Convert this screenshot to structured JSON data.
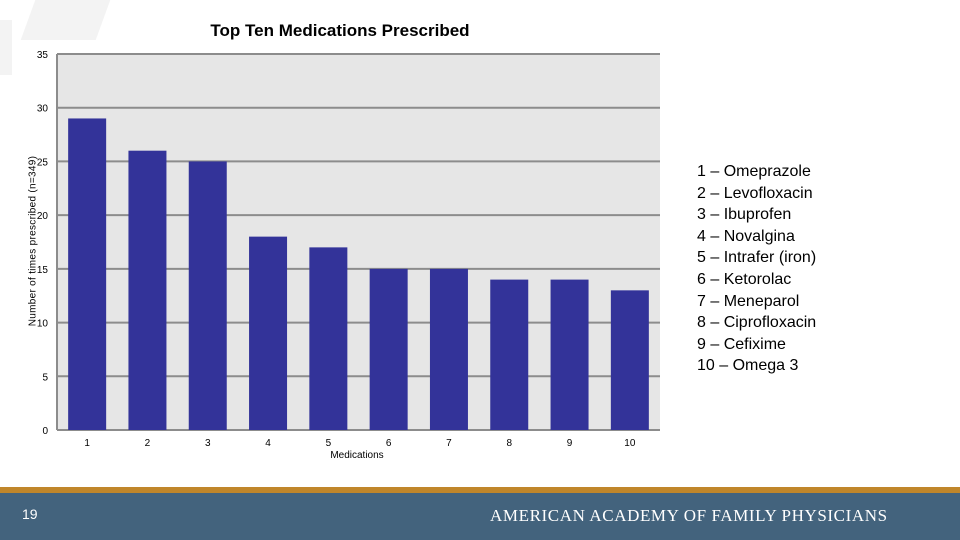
{
  "chart_data": {
    "type": "bar",
    "title": "Top Ten Medications Prescribed",
    "xlabel": "Medications",
    "ylabel": "Number of times prescribed (n=349)",
    "categories": [
      "1",
      "2",
      "3",
      "4",
      "5",
      "6",
      "7",
      "8",
      "9",
      "10"
    ],
    "values": [
      29,
      26,
      25,
      18,
      17,
      15,
      15,
      14,
      14,
      13
    ],
    "ylim": [
      0,
      35
    ],
    "yticks": [
      "0",
      "5",
      "10",
      "15",
      "20",
      "25",
      "30",
      "35"
    ],
    "grid": true,
    "bar_color": "#333399",
    "plot_background": "#e6e6e6",
    "legend_position": "right",
    "legend": [
      "1 – Omeprazole",
      "2 – Levofloxacin",
      "3 – Ibuprofen",
      "4 – Novalgina",
      "5 – Intrafer (iron)",
      "6 – Ketorolac",
      "7 – Meneparol",
      "8 – Ciprofloxacin",
      "9 – Cefixime",
      "10 – Omega 3"
    ]
  },
  "footer": {
    "page_number": "19",
    "organization": "AMERICAN ACADEMY OF FAMILY PHYSICIANS",
    "accent_color": "#c0862a",
    "bar_color": "#43637d"
  }
}
